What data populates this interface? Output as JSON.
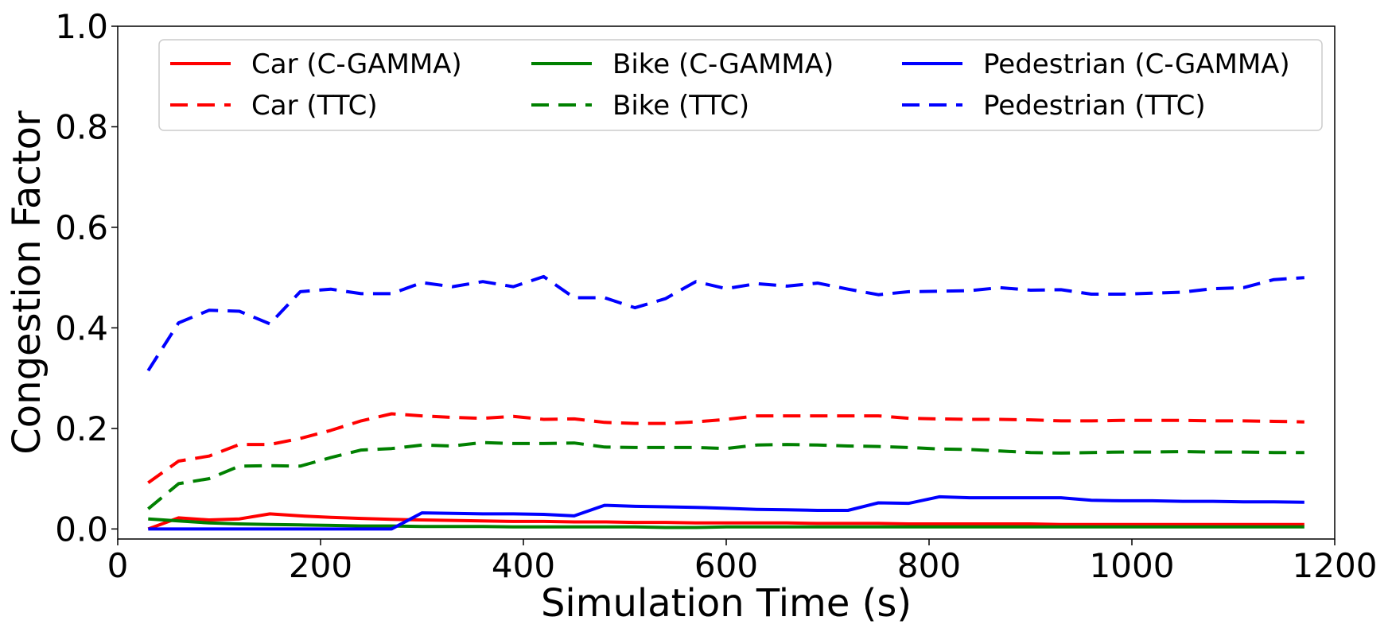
{
  "chart_data": {
    "type": "line",
    "title": "",
    "xlabel": "Simulation Time (s)",
    "ylabel": "Congestion Factor",
    "xlim": [
      0,
      1200
    ],
    "ylim": [
      -0.02,
      1.0
    ],
    "xticks": [
      0,
      200,
      400,
      600,
      800,
      1000,
      1200
    ],
    "xtick_labels": [
      "0",
      "200",
      "400",
      "600",
      "800",
      "1000",
      "1200"
    ],
    "yticks": [
      0.0,
      0.2,
      0.4,
      0.6,
      0.8,
      1.0
    ],
    "ytick_labels": [
      "0.0",
      "0.2",
      "0.4",
      "0.6",
      "0.8",
      "1.0"
    ],
    "grid": false,
    "legend_position": "top",
    "x": [
      30,
      60,
      90,
      120,
      150,
      180,
      210,
      240,
      270,
      300,
      330,
      360,
      390,
      420,
      450,
      480,
      510,
      540,
      570,
      600,
      630,
      660,
      690,
      720,
      750,
      780,
      810,
      840,
      870,
      900,
      930,
      960,
      990,
      1020,
      1050,
      1080,
      1110,
      1140,
      1170
    ],
    "series": [
      {
        "name": "Car (C-GAMMA)",
        "color": "#ff0000",
        "dash": "solid",
        "values": [
          0.0,
          0.022,
          0.018,
          0.02,
          0.03,
          0.026,
          0.023,
          0.021,
          0.019,
          0.018,
          0.017,
          0.016,
          0.015,
          0.015,
          0.014,
          0.014,
          0.013,
          0.013,
          0.012,
          0.012,
          0.012,
          0.012,
          0.011,
          0.011,
          0.011,
          0.01,
          0.01,
          0.01,
          0.01,
          0.01,
          0.009,
          0.009,
          0.009,
          0.009,
          0.009,
          0.009,
          0.009,
          0.009,
          0.009
        ]
      },
      {
        "name": "Car (TTC)",
        "color": "#ff0000",
        "dash": "dashed",
        "values": [
          0.092,
          0.135,
          0.145,
          0.168,
          0.168,
          0.18,
          0.196,
          0.215,
          0.229,
          0.225,
          0.222,
          0.22,
          0.224,
          0.218,
          0.219,
          0.212,
          0.21,
          0.21,
          0.213,
          0.218,
          0.225,
          0.225,
          0.225,
          0.225,
          0.225,
          0.22,
          0.219,
          0.218,
          0.218,
          0.217,
          0.215,
          0.215,
          0.216,
          0.216,
          0.216,
          0.215,
          0.215,
          0.214,
          0.213
        ]
      },
      {
        "name": "Bike (C-GAMMA)",
        "color": "#008000",
        "dash": "solid",
        "values": [
          0.02,
          0.016,
          0.012,
          0.01,
          0.009,
          0.008,
          0.007,
          0.006,
          0.006,
          0.005,
          0.005,
          0.005,
          0.004,
          0.004,
          0.004,
          0.004,
          0.004,
          0.003,
          0.003,
          0.004,
          0.004,
          0.004,
          0.004,
          0.004,
          0.004,
          0.004,
          0.004,
          0.004,
          0.004,
          0.004,
          0.004,
          0.004,
          0.004,
          0.004,
          0.004,
          0.004,
          0.004,
          0.004,
          0.004
        ]
      },
      {
        "name": "Bike (TTC)",
        "color": "#008000",
        "dash": "dashed",
        "values": [
          0.04,
          0.09,
          0.1,
          0.125,
          0.126,
          0.125,
          0.142,
          0.157,
          0.16,
          0.167,
          0.165,
          0.172,
          0.17,
          0.17,
          0.171,
          0.163,
          0.162,
          0.162,
          0.162,
          0.16,
          0.167,
          0.168,
          0.167,
          0.165,
          0.164,
          0.162,
          0.159,
          0.158,
          0.155,
          0.152,
          0.151,
          0.152,
          0.153,
          0.153,
          0.154,
          0.153,
          0.153,
          0.152,
          0.152
        ]
      },
      {
        "name": "Pedestrian (C-GAMMA)",
        "color": "#0000ff",
        "dash": "solid",
        "values": [
          0.0,
          0.0,
          0.0,
          0.0,
          0.0,
          0.0,
          0.0,
          0.0,
          0.0,
          0.032,
          0.031,
          0.03,
          0.03,
          0.029,
          0.026,
          0.047,
          0.045,
          0.044,
          0.043,
          0.041,
          0.039,
          0.038,
          0.037,
          0.037,
          0.052,
          0.051,
          0.064,
          0.062,
          0.062,
          0.062,
          0.062,
          0.057,
          0.056,
          0.056,
          0.055,
          0.055,
          0.054,
          0.054,
          0.053
        ]
      },
      {
        "name": "Pedestrian (TTC)",
        "color": "#0000ff",
        "dash": "dashed",
        "values": [
          0.315,
          0.41,
          0.435,
          0.433,
          0.408,
          0.472,
          0.477,
          0.468,
          0.468,
          0.49,
          0.482,
          0.492,
          0.482,
          0.502,
          0.46,
          0.46,
          0.44,
          0.458,
          0.492,
          0.478,
          0.488,
          0.483,
          0.489,
          0.477,
          0.466,
          0.472,
          0.473,
          0.474,
          0.48,
          0.475,
          0.476,
          0.467,
          0.467,
          0.469,
          0.471,
          0.478,
          0.48,
          0.496,
          0.5
        ]
      }
    ]
  }
}
